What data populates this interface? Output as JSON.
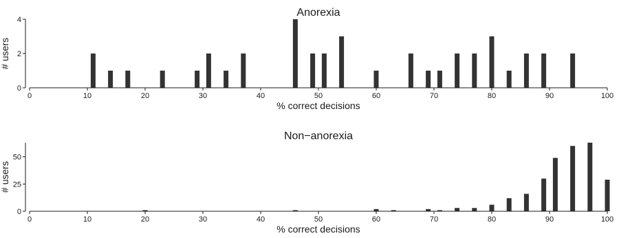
{
  "chart_data": [
    {
      "type": "bar",
      "title": "Anorexia",
      "xlabel": "% correct decisions",
      "ylabel": "# users",
      "xlim": [
        0,
        100
      ],
      "ylim": [
        0,
        4
      ],
      "xticks": [
        0,
        10,
        20,
        30,
        40,
        50,
        60,
        70,
        80,
        90,
        100
      ],
      "yticks": [
        0,
        2,
        4
      ],
      "color": "#333333",
      "x": [
        11,
        14,
        17,
        23,
        29,
        31,
        34,
        37,
        46,
        49,
        51,
        54,
        60,
        66,
        69,
        71,
        74,
        77,
        80,
        83,
        86,
        89,
        94
      ],
      "values": [
        2,
        1,
        1,
        1,
        1,
        2,
        1,
        2,
        4,
        2,
        2,
        3,
        1,
        2,
        1,
        1,
        2,
        2,
        3,
        1,
        2,
        2,
        2
      ]
    },
    {
      "type": "bar",
      "title": "Non−anorexia",
      "xlabel": "% correct decisions",
      "ylabel": "# users",
      "xlim": [
        0,
        100
      ],
      "ylim": [
        0,
        63
      ],
      "xticks": [
        0,
        10,
        20,
        30,
        40,
        50,
        60,
        70,
        80,
        90,
        100
      ],
      "yticks": [
        0,
        25,
        50
      ],
      "color": "#333333",
      "x": [
        20,
        46,
        60,
        63,
        69,
        71,
        74,
        77,
        80,
        83,
        86,
        89,
        91,
        94,
        97,
        100
      ],
      "values": [
        1,
        1,
        2,
        1,
        2,
        1,
        3,
        3,
        6,
        12,
        16,
        30,
        49,
        60,
        63,
        29
      ]
    }
  ]
}
